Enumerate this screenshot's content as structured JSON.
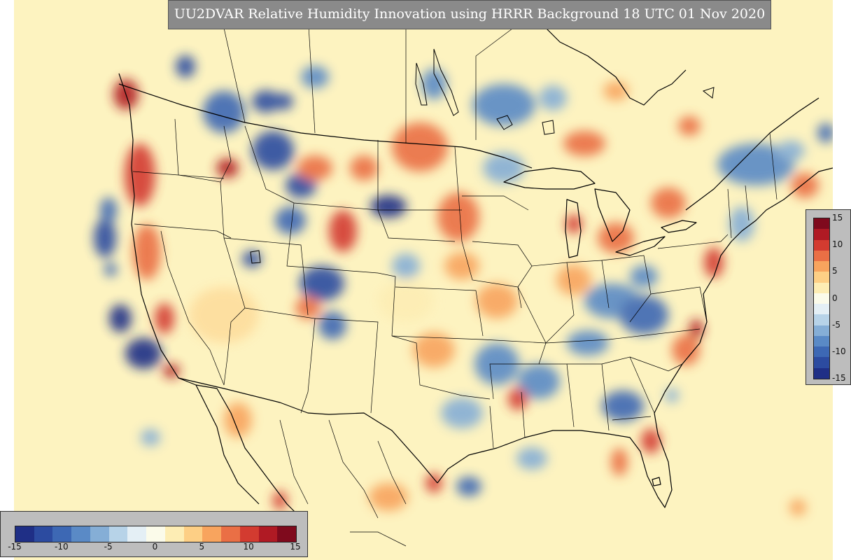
{
  "title": "UU2DVAR Relative Humidity Innovation using HRRR Background 18 UTC 01 Nov 2020",
  "colorbar": {
    "min": -15,
    "max": 15,
    "tick_labels": [
      "-15",
      "-10",
      "-5",
      "0",
      "5",
      "10",
      "15"
    ],
    "colors": [
      "#1f2f86",
      "#2c4ba0",
      "#3d68b4",
      "#5a8ac6",
      "#85aed6",
      "#b7d3e8",
      "#e4eff5",
      "#fbfbea",
      "#fdedb4",
      "#fdcf85",
      "#f8a45e",
      "#ea6f45",
      "#d33b30",
      "#b01a24",
      "#7f0a1d"
    ]
  },
  "map": {
    "projection": "Lambert Conformal (CONUS)",
    "background_color": "#fdf3c0"
  }
}
